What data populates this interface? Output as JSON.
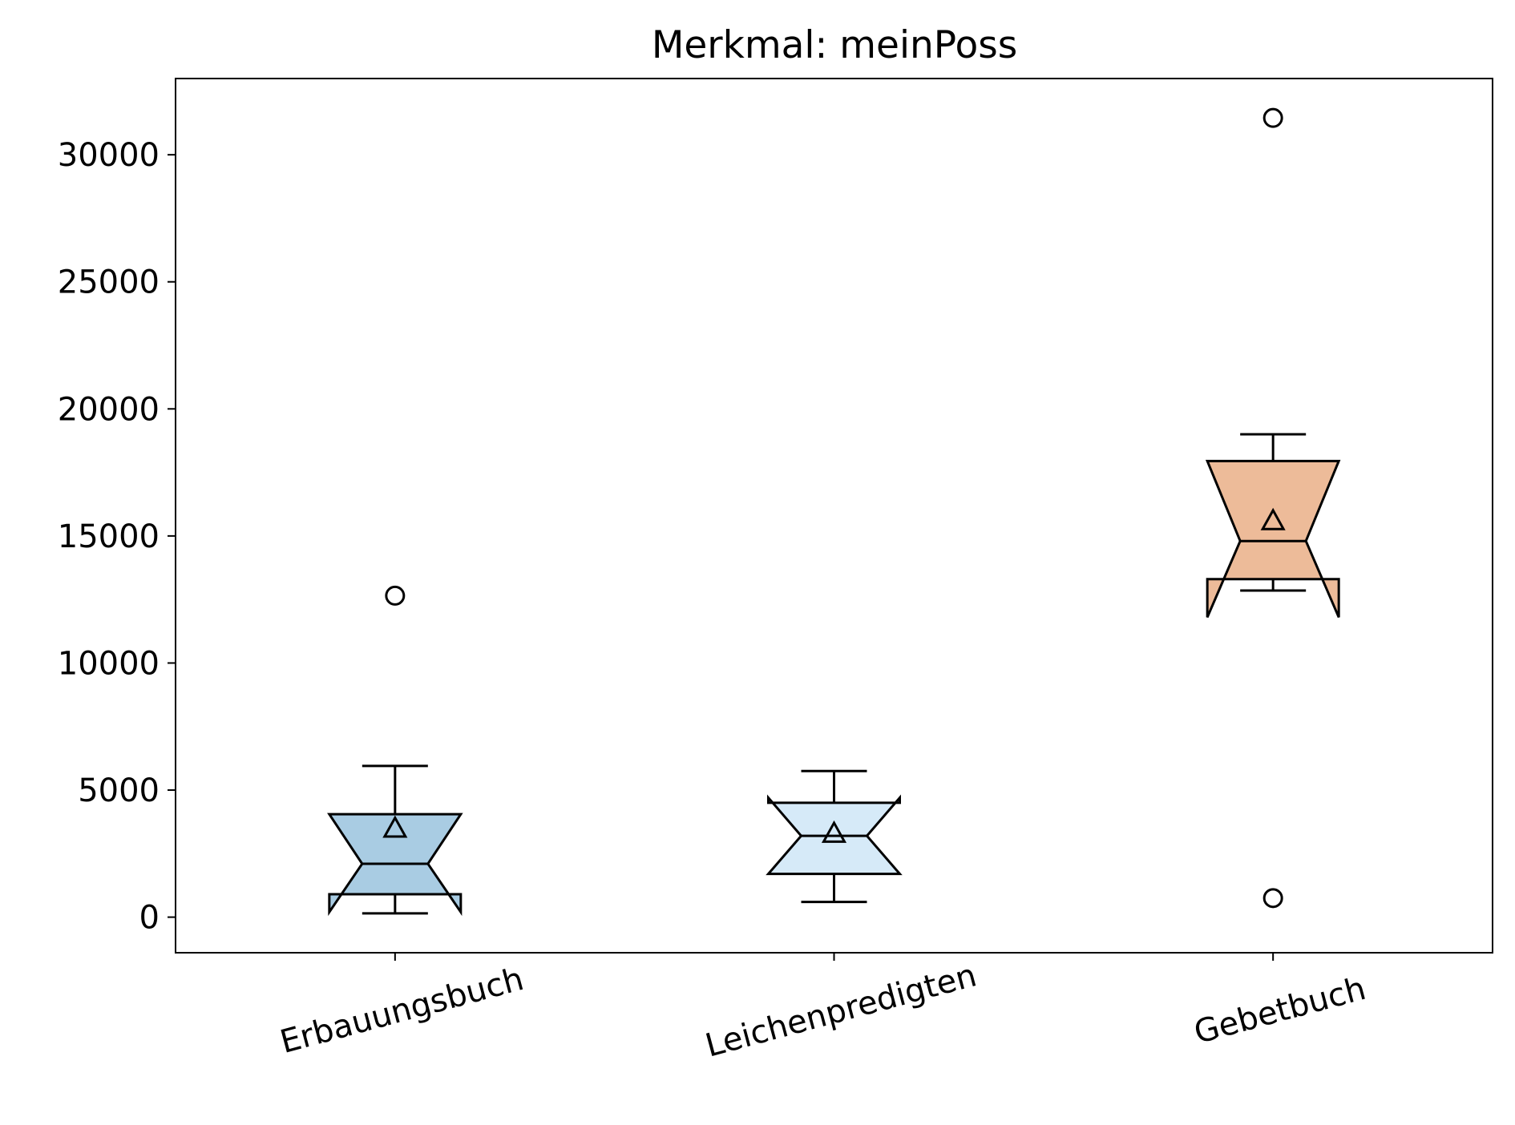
{
  "chart_data": {
    "type": "box",
    "title": "Merkmal: meinPoss",
    "xlabel": "",
    "ylabel": "",
    "ylim": [
      -1400,
      33000
    ],
    "yticks": [
      0,
      5000,
      10000,
      15000,
      20000,
      25000,
      30000
    ],
    "ytick_labels": [
      "0",
      "5000",
      "10000",
      "15000",
      "20000",
      "25000",
      "30000"
    ],
    "categories": [
      "Erbauungsbuch",
      "Leichenpredigten",
      "Gebetbuch"
    ],
    "boxes": [
      {
        "category": "Erbauungsbuch",
        "whisker_low": 150,
        "q1": 900,
        "median": 2100,
        "q3": 4050,
        "whisker_high": 5950,
        "notch_low": 200,
        "notch_high": 4050,
        "mean": 3500,
        "outliers": [
          12650
        ],
        "color": "#a9cce3"
      },
      {
        "category": "Leichenpredigten",
        "whisker_low": 600,
        "q1": 1700,
        "median": 3200,
        "q3": 4500,
        "whisker_high": 5750,
        "notch_low": 1700,
        "notch_high": 4700,
        "mean": 3300,
        "outliers": [],
        "color": "#d6eaf8"
      },
      {
        "category": "Gebetbuch",
        "whisker_low": 12850,
        "q1": 13300,
        "median": 14800,
        "q3": 17950,
        "whisker_high": 19000,
        "notch_low": 11800,
        "notch_high": 17950,
        "mean": 15600,
        "outliers": [
          31450,
          750
        ],
        "color": "#edbb99"
      }
    ],
    "grid": false,
    "legend": "none",
    "mean_marker": "triangle",
    "outlier_marker": "circle",
    "xtick_rotation": "15 degrees"
  }
}
